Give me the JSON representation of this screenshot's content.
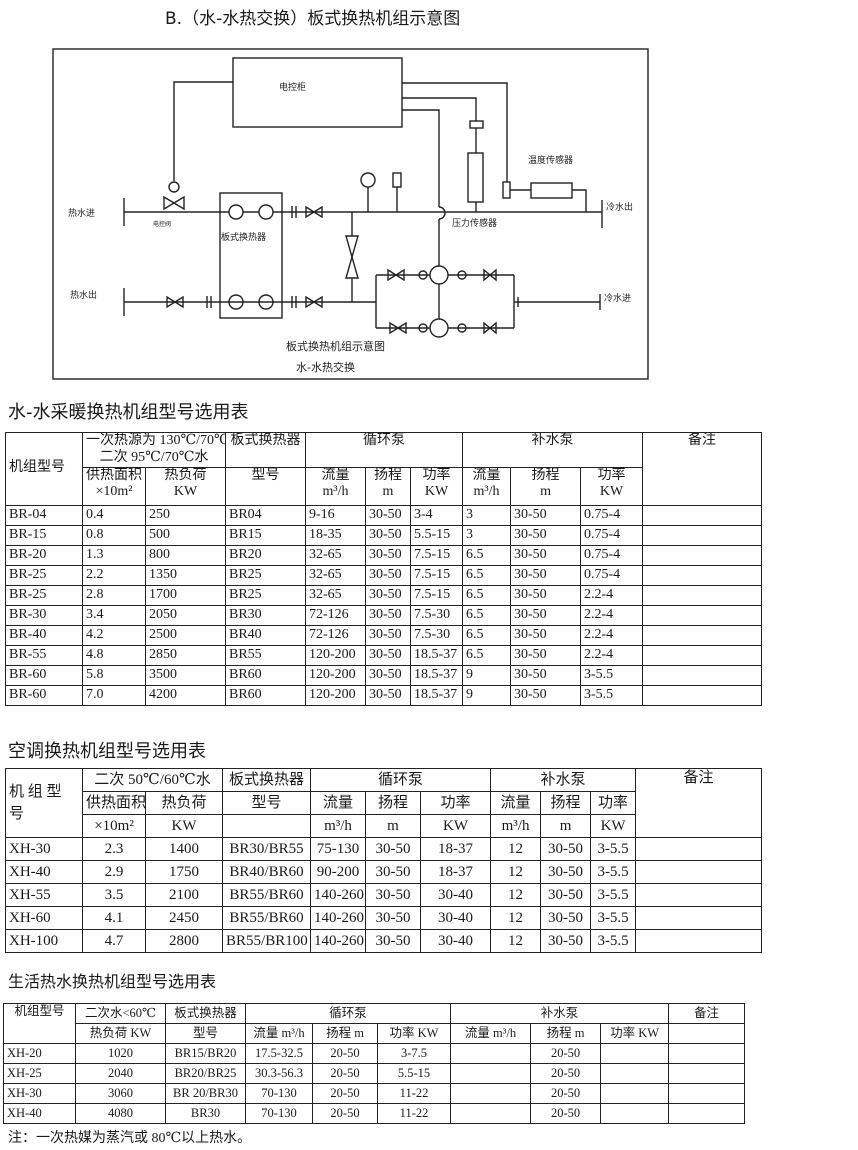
{
  "title": "B.（水-水热交换）板式换热机组示意图",
  "diagram": {
    "control_cabinet": "电控柜",
    "hot_water_in": "热水进",
    "hot_water_out": "热水出",
    "cold_water_out": "冷水出",
    "cold_water_in": "冷水进",
    "electric_valve": "电控阀",
    "plate_exchanger": "板式换热器",
    "pressure_sensor": "压力传感器",
    "temperature_sensor": "温度传感器",
    "caption1": "板式换热机组示意图",
    "caption2": "水-水热交换"
  },
  "table1": {
    "title": "水-水采暖换热机组型号选用表",
    "h_model": "机组型号",
    "h_source": "一次热源为 130℃/70℃",
    "h_source2": "二次 95℃/70℃水",
    "h_exchanger": "板式换热器",
    "h_circ": "循环泵",
    "h_makeup": "补水泵",
    "h_remark": "备注",
    "h_area": "供热面积",
    "h_area_unit": "×10m²",
    "h_load": "热负荷",
    "h_load_unit": "KW",
    "h_type": "型号",
    "h_flow": "流量",
    "h_flow_unit": "m³/h",
    "h_head": "扬程",
    "h_head_unit": "m",
    "h_power": "功率",
    "h_power_unit": "KW",
    "rows": [
      [
        "BR-04",
        "0.4",
        "250",
        "BR04",
        "9-16",
        "30-50",
        "3-4",
        "3",
        "30-50",
        "0.75-4",
        ""
      ],
      [
        "BR-15",
        "0.8",
        "500",
        "BR15",
        "18-35",
        "30-50",
        "5.5-15",
        "3",
        "30-50",
        "0.75-4",
        ""
      ],
      [
        "BR-20",
        "1.3",
        "800",
        "BR20",
        "32-65",
        "30-50",
        "7.5-15",
        "6.5",
        "30-50",
        "0.75-4",
        ""
      ],
      [
        "BR-25",
        "2.2",
        "1350",
        "BR25",
        "32-65",
        "30-50",
        "7.5-15",
        "6.5",
        "30-50",
        "0.75-4",
        ""
      ],
      [
        "BR-25",
        "2.8",
        "1700",
        "BR25",
        "32-65",
        "30-50",
        "7.5-15",
        "6.5",
        "30-50",
        "2.2-4",
        ""
      ],
      [
        "BR-30",
        "3.4",
        "2050",
        "BR30",
        "72-126",
        "30-50",
        "7.5-30",
        "6.5",
        "30-50",
        "2.2-4",
        ""
      ],
      [
        "BR-40",
        "4.2",
        "2500",
        "BR40",
        "72-126",
        "30-50",
        "7.5-30",
        "6.5",
        "30-50",
        "2.2-4",
        ""
      ],
      [
        "BR-55",
        "4.8",
        "2850",
        "BR55",
        "120-200",
        "30-50",
        "18.5-37",
        "6.5",
        "30-50",
        "2.2-4",
        ""
      ],
      [
        "BR-60",
        "5.8",
        "3500",
        "BR60",
        "120-200",
        "30-50",
        "18.5-37",
        "9",
        "30-50",
        "3-5.5",
        ""
      ],
      [
        "BR-60",
        "7.0",
        "4200",
        "BR60",
        "120-200",
        "30-50",
        "18.5-37",
        "9",
        "30-50",
        "3-5.5",
        ""
      ]
    ]
  },
  "table2": {
    "title": "空调换热机组型号选用表",
    "h_model": "机 组 型 号",
    "h_secondary": "二次 50℃/60℃水",
    "h_exchanger": "板式换热器",
    "h_circ": "循环泵",
    "h_makeup": "补水泵",
    "h_remark": "备注",
    "h_area": "供热面积",
    "h_area_unit": "×10m²",
    "h_load": "热负荷",
    "h_load_unit": "KW",
    "h_type": "型号",
    "h_flow": "流量",
    "h_flow_unit": "m³/h",
    "h_head": "扬程",
    "h_head_unit": "m",
    "h_power": "功率",
    "h_power_unit": "KW",
    "rows": [
      [
        "XH-30",
        "2.3",
        "1400",
        "BR30/BR55",
        "75-130",
        "30-50",
        "18-37",
        "12",
        "30-50",
        "3-5.5",
        ""
      ],
      [
        "XH-40",
        "2.9",
        "1750",
        "BR40/BR60",
        "90-200",
        "30-50",
        "18-37",
        "12",
        "30-50",
        "3-5.5",
        ""
      ],
      [
        "XH-55",
        "3.5",
        "2100",
        "BR55/BR60",
        "140-260",
        "30-50",
        "30-40",
        "12",
        "30-50",
        "3-5.5",
        ""
      ],
      [
        "XH-60",
        "4.1",
        "2450",
        "BR55/BR60",
        "140-260",
        "30-50",
        "30-40",
        "12",
        "30-50",
        "3-5.5",
        ""
      ],
      [
        "XH-100",
        "4.7",
        "2800",
        "BR55/BR100",
        "140-260",
        "30-50",
        "30-40",
        "12",
        "30-50",
        "3-5.5",
        ""
      ]
    ]
  },
  "table3": {
    "title": "生活热水换热机组型号选用表",
    "h_model": "机组型号",
    "h_secondary": "二次水<60℃",
    "h_exchanger": "板式换热器",
    "h_circ": "循环泵",
    "h_makeup": "补水泵",
    "h_remark": "备注",
    "h_load": "热负荷 KW",
    "h_type": "型号",
    "h_flow": "流量 m³/h",
    "h_head": "扬程 m",
    "h_power": "功率 KW",
    "rows": [
      [
        "XH-20",
        "1020",
        "BR15/BR20",
        "17.5-32.5",
        "20-50",
        "3-7.5",
        "",
        "20-50",
        "",
        ""
      ],
      [
        "XH-25",
        "2040",
        "BR20/BR25",
        "30.3-56.3",
        "20-50",
        "5.5-15",
        "",
        "20-50",
        "",
        ""
      ],
      [
        "XH-30",
        "3060",
        "BR 20/BR30",
        "70-130",
        "20-50",
        "11-22",
        "",
        "20-50",
        "",
        ""
      ],
      [
        "XH-40",
        "4080",
        "BR30",
        "70-130",
        "20-50",
        "11-22",
        "",
        "20-50",
        "",
        ""
      ]
    ]
  },
  "note": "注：一次热媒为蒸汽或 80℃以上热水。"
}
